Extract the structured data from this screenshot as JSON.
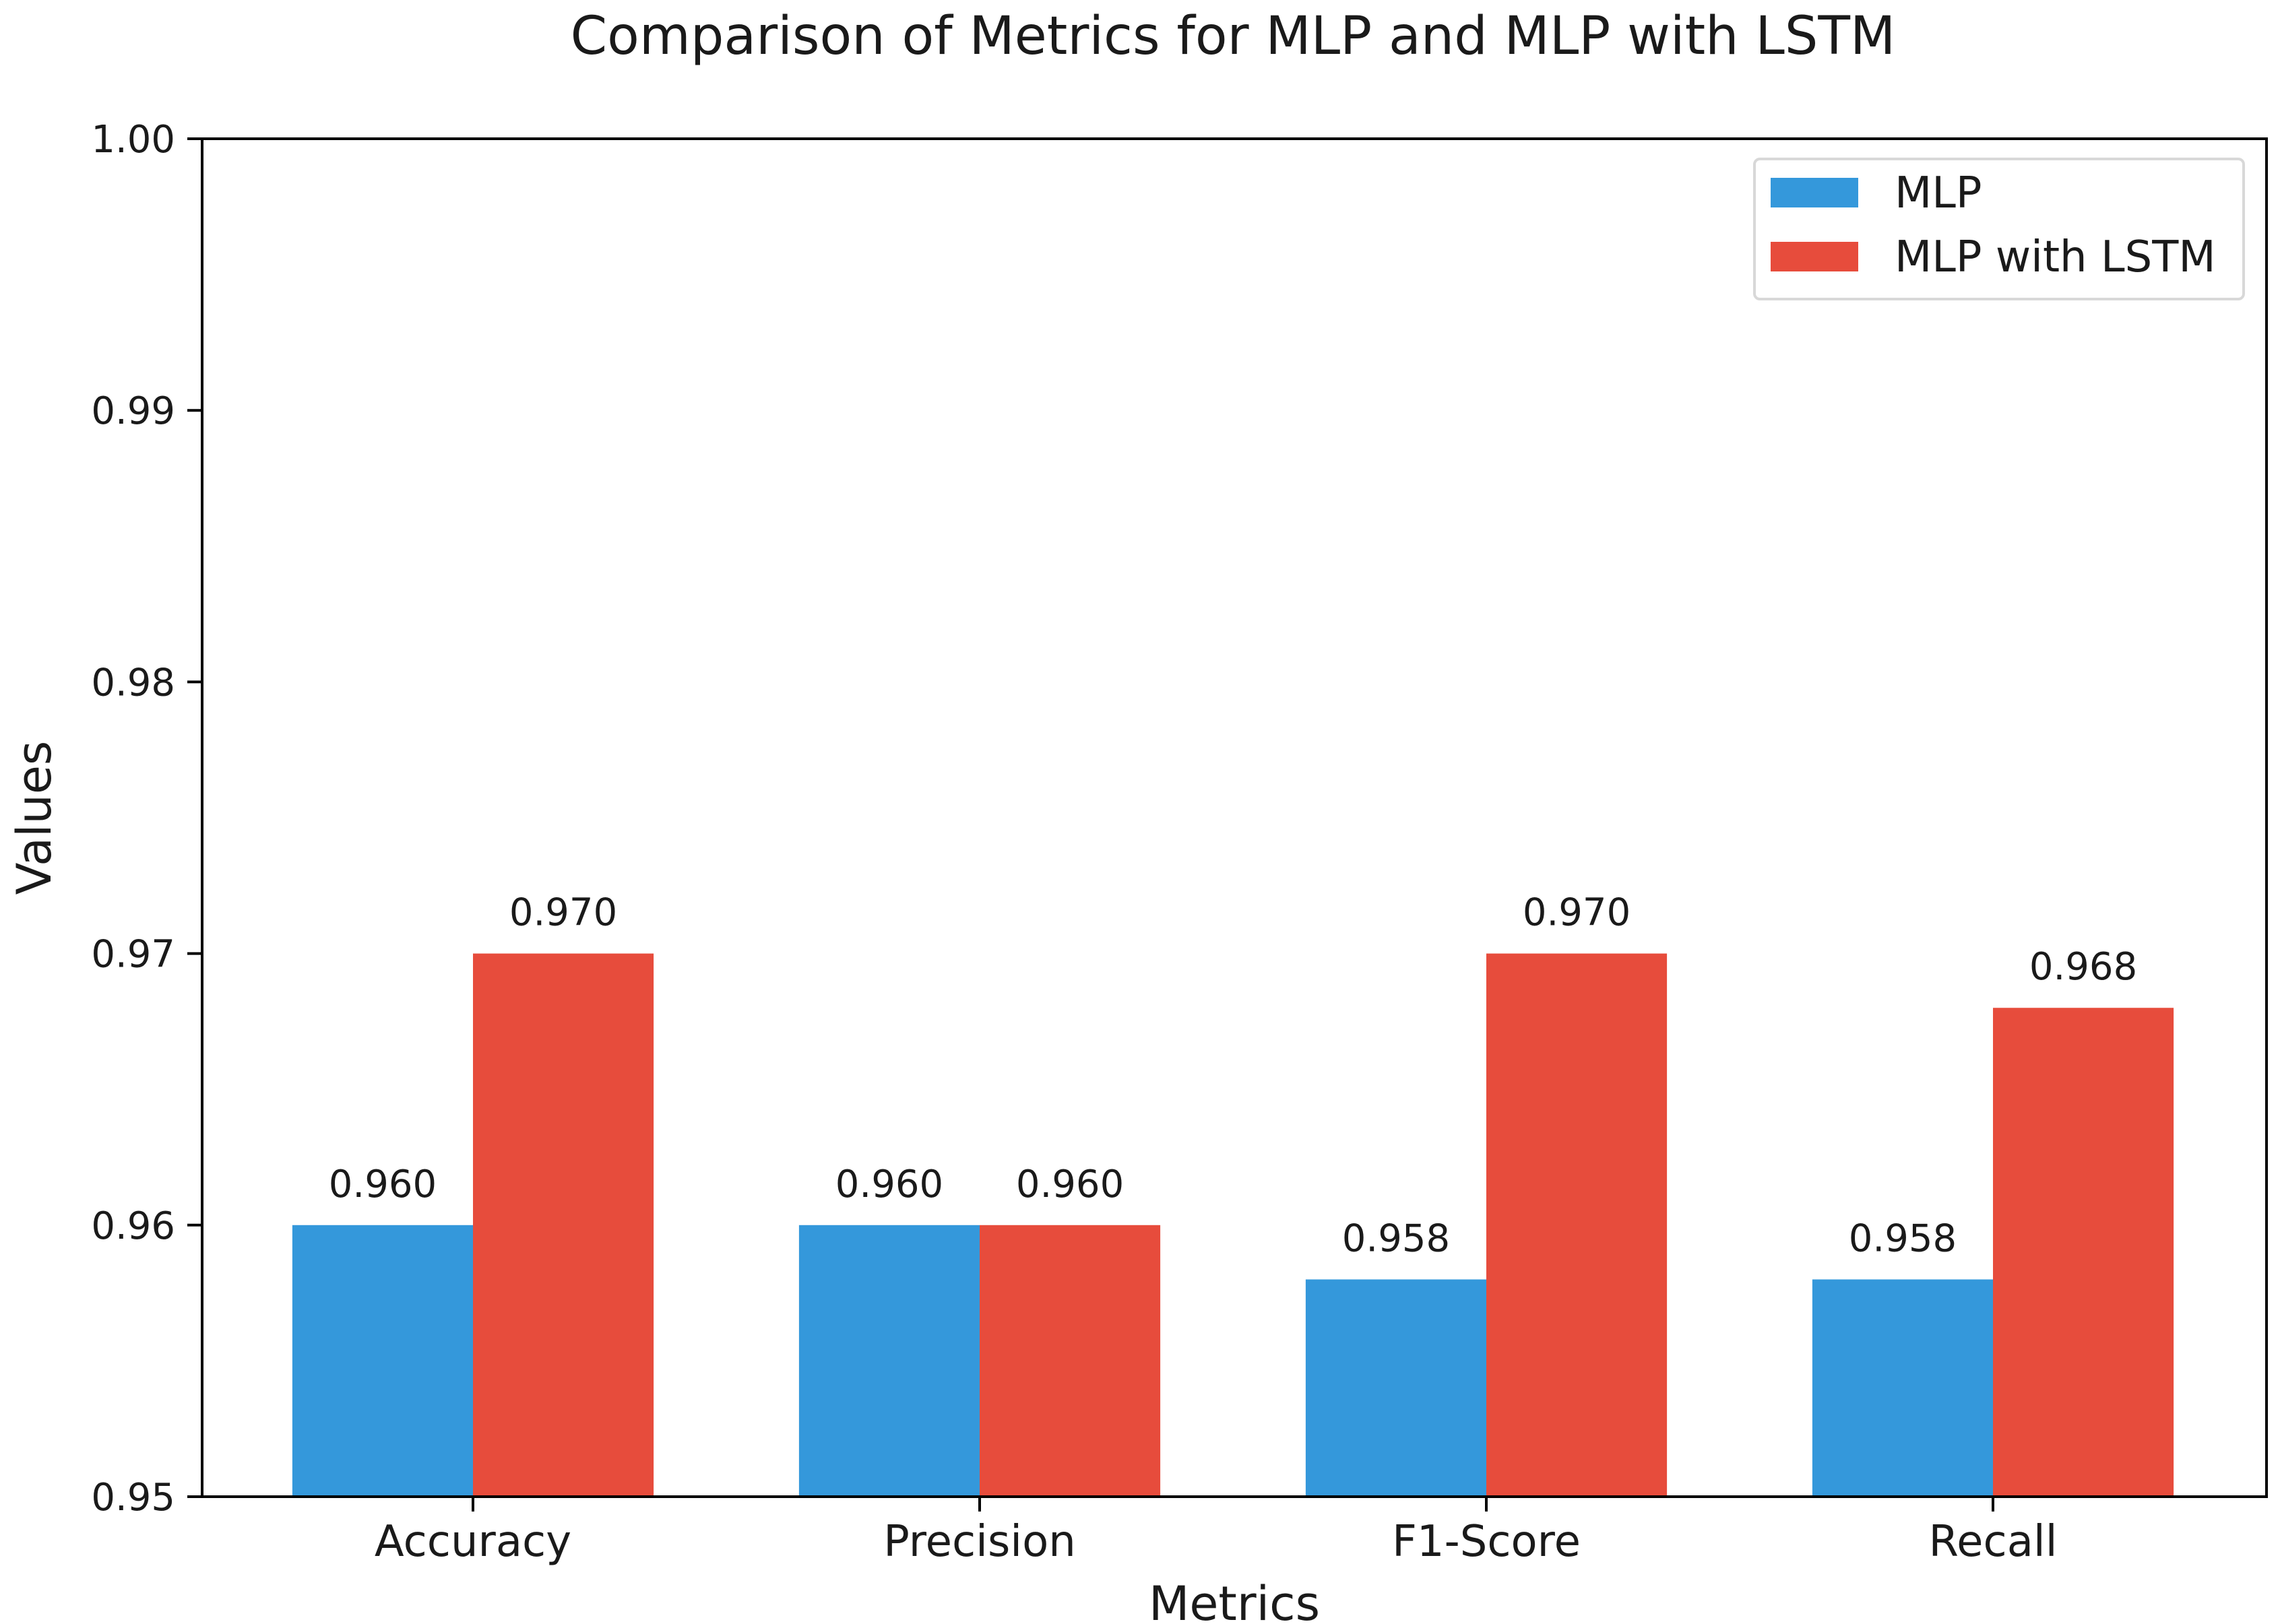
{
  "chart_data": {
    "type": "bar",
    "title": "Comparison of Metrics for MLP and MLP with LSTM",
    "xlabel": "Metrics",
    "ylabel": "Values",
    "ylim": [
      0.95,
      1.0
    ],
    "yticks": [
      0.95,
      0.96,
      0.97,
      0.98,
      0.99,
      1.0
    ],
    "ytick_labels": [
      "0.95",
      "0.96",
      "0.97",
      "0.98",
      "0.99",
      "1.00"
    ],
    "categories": [
      "Accuracy",
      "Precision",
      "F1-Score",
      "Recall"
    ],
    "series": [
      {
        "name": "MLP",
        "color": "#3498db",
        "values": [
          0.96,
          0.96,
          0.958,
          0.958
        ],
        "labels": [
          "0.960",
          "0.960",
          "0.958",
          "0.958"
        ]
      },
      {
        "name": "MLP with LSTM",
        "color": "#e74c3c",
        "values": [
          0.97,
          0.96,
          0.97,
          0.968
        ],
        "labels": [
          "0.970",
          "0.960",
          "0.970",
          "0.968"
        ]
      }
    ],
    "grid": false,
    "legend_position": "top-right"
  }
}
